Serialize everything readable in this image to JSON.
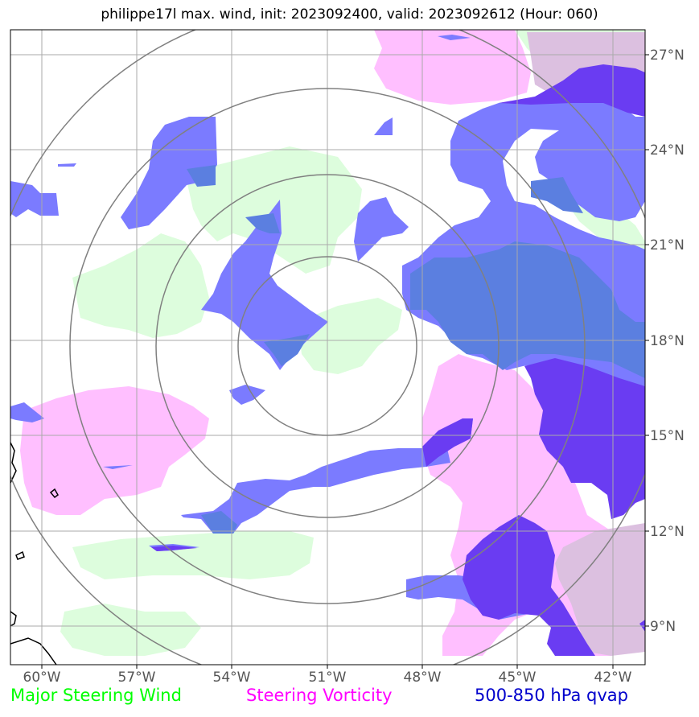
{
  "title": "philippe17l max. wind, init: 2023092400, valid: 2023092612 (Hour: 060)",
  "lon_labels": [
    "60°W",
    "57°W",
    "54°W",
    "51°W",
    "48°W",
    "45°W",
    "42°W"
  ],
  "lat_labels": [
    "27°N",
    "24°N",
    "21°N",
    "18°N",
    "15°N",
    "12°N",
    "9°N"
  ],
  "legend": {
    "wind": "Major Steering Wind",
    "vorticity": "Steering Vorticity",
    "qvap": "500-850 hPa qvap"
  },
  "colors": {
    "wind": "#00ff00",
    "wind_fill": "#ddfddd",
    "vorticity": "#ff00ff",
    "vorticity_fill": "#ffbfff",
    "qvap": "#0000cc",
    "qvap_light": "#7b7bff",
    "qvap_mid": "#5b7fe0",
    "qvap_dark": "#6a3cf2",
    "overlap": "#dcc0e0",
    "grid": "#aaaaaa",
    "rings": "#808080"
  },
  "storm_center": {
    "lon": -51,
    "lat": 18
  }
}
